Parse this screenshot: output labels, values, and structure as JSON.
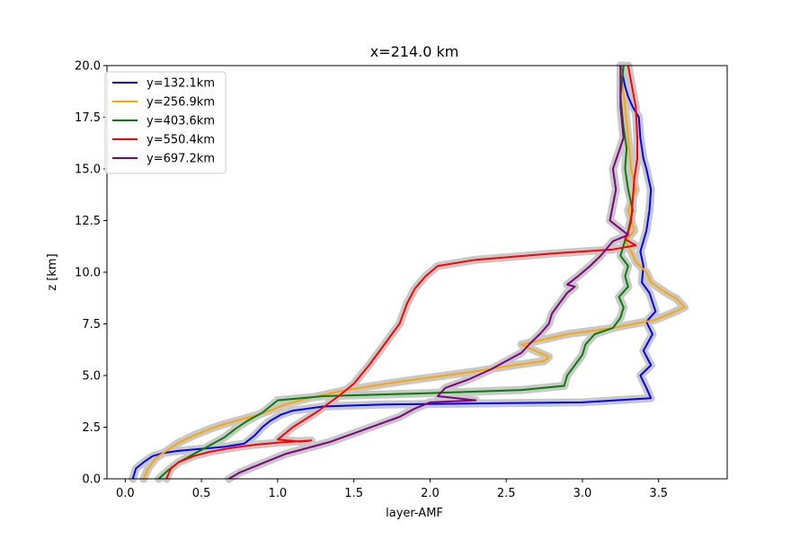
{
  "chart_data": {
    "type": "line",
    "title": "x=214.0 km",
    "xlabel": "layer-AMF",
    "ylabel": "z [km]",
    "xlim": [
      -0.12,
      3.95
    ],
    "ylim": [
      0,
      20
    ],
    "xticks": [
      0.0,
      0.5,
      1.0,
      1.5,
      2.0,
      2.5,
      3.0,
      3.5
    ],
    "xtick_labels": [
      "0.0",
      "0.5",
      "1.0",
      "1.5",
      "2.0",
      "2.5",
      "3.0",
      "3.5"
    ],
    "yticks": [
      0.0,
      2.5,
      5.0,
      7.5,
      10.0,
      12.5,
      15.0,
      17.5,
      20.0
    ],
    "ytick_labels": [
      "0.0",
      "2.5",
      "5.0",
      "7.5",
      "10.0",
      "12.5",
      "15.0",
      "17.5",
      "20.0"
    ],
    "grid": false,
    "legend_position": "upper-left",
    "uncertainty_band_color": "#c8c8c8",
    "series": [
      {
        "name": "y=132.1km",
        "color": "#0000ff",
        "x": [
          0.05,
          0.07,
          0.12,
          0.18,
          0.25,
          0.35,
          0.5,
          0.65,
          0.78,
          0.85,
          0.9,
          0.95,
          1.02,
          1.1,
          1.3,
          1.7,
          2.3,
          3.0,
          3.45,
          3.42,
          3.38,
          3.45,
          3.4,
          3.46,
          3.42,
          3.48,
          3.44,
          3.39,
          3.4,
          3.38,
          3.42,
          3.44,
          3.45,
          3.42,
          3.4,
          3.38,
          3.37,
          3.33,
          3.3,
          3.28,
          3.25
        ],
        "y": [
          0.0,
          0.5,
          0.8,
          1.1,
          1.25,
          1.35,
          1.45,
          1.55,
          1.7,
          2.1,
          2.5,
          2.8,
          3.1,
          3.3,
          3.5,
          3.6,
          3.65,
          3.7,
          3.9,
          4.4,
          5.0,
          5.5,
          6.2,
          7.0,
          7.6,
          8.1,
          9.0,
          9.5,
          10.3,
          11.0,
          12.0,
          13.0,
          14.0,
          15.0,
          15.5,
          16.5,
          17.5,
          18.0,
          18.5,
          19.0,
          20.0
        ]
      },
      {
        "name": "y=256.9km",
        "color": "#ffa500",
        "x": [
          0.12,
          0.15,
          0.2,
          0.28,
          0.35,
          0.45,
          0.55,
          0.65,
          0.75,
          0.85,
          0.95,
          1.05,
          1.2,
          1.45,
          1.8,
          2.3,
          2.55,
          2.75,
          2.78,
          2.6,
          2.9,
          3.2,
          3.48,
          3.58,
          3.67,
          3.62,
          3.55,
          3.45,
          3.42,
          3.35,
          3.32,
          3.28,
          3.34,
          3.3,
          3.35,
          3.32,
          3.3,
          3.28,
          3.25
        ],
        "y": [
          0.0,
          0.5,
          1.0,
          1.4,
          1.75,
          2.1,
          2.4,
          2.65,
          2.85,
          3.05,
          3.3,
          3.6,
          3.9,
          4.3,
          4.7,
          5.2,
          5.5,
          5.7,
          5.9,
          6.5,
          7.0,
          7.3,
          7.7,
          8.0,
          8.3,
          8.7,
          9.0,
          9.5,
          10.0,
          10.5,
          11.0,
          11.5,
          12.0,
          13.0,
          14.0,
          15.0,
          16.5,
          18.0,
          20.0
        ]
      },
      {
        "name": "y=403.6km",
        "color": "#008000",
        "x": [
          0.22,
          0.28,
          0.35,
          0.45,
          0.55,
          0.65,
          0.72,
          0.8,
          0.9,
          1.0,
          1.3,
          2.0,
          2.6,
          2.88,
          2.9,
          2.95,
          3.0,
          3.02,
          3.08,
          3.2,
          3.25,
          3.27,
          3.24,
          3.3,
          3.28,
          3.3,
          3.25,
          3.27,
          3.3,
          3.33,
          3.3,
          3.28,
          3.29,
          3.27,
          3.25,
          3.27
        ],
        "y": [
          0.0,
          0.4,
          0.8,
          1.2,
          1.6,
          2.0,
          2.4,
          2.8,
          3.2,
          3.8,
          4.0,
          4.15,
          4.3,
          4.5,
          5.0,
          5.5,
          6.0,
          6.5,
          7.0,
          7.3,
          7.8,
          8.3,
          8.8,
          9.3,
          9.8,
          10.3,
          10.8,
          11.3,
          12.0,
          13.0,
          14.0,
          15.0,
          16.0,
          17.0,
          18.5,
          20.0
        ]
      },
      {
        "name": "y=550.4km",
        "color": "#ff0000",
        "x": [
          0.27,
          0.3,
          0.35,
          0.45,
          0.55,
          0.7,
          0.85,
          1.0,
          1.1,
          1.22,
          1.15,
          1.0,
          1.1,
          1.25,
          1.4,
          1.5,
          1.6,
          1.7,
          1.75,
          1.8,
          1.85,
          1.9,
          1.97,
          2.05,
          2.3,
          2.8,
          3.2,
          3.35,
          3.28,
          3.3,
          3.32,
          3.33,
          3.34,
          3.36,
          3.36,
          3.35,
          3.3
        ],
        "y": [
          0.0,
          0.5,
          0.8,
          1.1,
          1.3,
          1.5,
          1.65,
          1.75,
          1.8,
          1.85,
          1.8,
          1.9,
          2.5,
          3.2,
          4.0,
          4.6,
          5.5,
          6.5,
          7.0,
          7.5,
          8.5,
          9.2,
          9.8,
          10.3,
          10.6,
          10.9,
          11.1,
          11.3,
          11.6,
          11.9,
          12.5,
          13.5,
          14.5,
          15.5,
          16.5,
          18.0,
          20.0
        ]
      },
      {
        "name": "y=697.2km",
        "color": "#800080",
        "x": [
          0.68,
          0.75,
          0.85,
          0.95,
          1.05,
          1.2,
          1.35,
          1.5,
          1.65,
          1.8,
          1.9,
          2.0,
          2.3,
          2.05,
          2.1,
          2.25,
          2.4,
          2.5,
          2.6,
          2.65,
          2.72,
          2.78,
          2.8,
          2.85,
          2.9,
          2.95,
          2.9,
          2.97,
          3.05,
          3.12,
          3.2,
          3.3,
          3.18,
          3.22,
          3.2,
          3.27,
          3.25,
          3.25
        ],
        "y": [
          0.0,
          0.3,
          0.6,
          0.9,
          1.2,
          1.5,
          1.8,
          2.2,
          2.6,
          3.0,
          3.4,
          3.7,
          3.8,
          4.0,
          4.4,
          4.8,
          5.3,
          5.7,
          6.1,
          6.5,
          7.0,
          7.5,
          8.0,
          8.5,
          9.0,
          9.3,
          9.4,
          9.8,
          10.3,
          10.8,
          11.5,
          11.8,
          12.5,
          14.0,
          15.0,
          16.5,
          18.0,
          20.0
        ]
      }
    ]
  }
}
